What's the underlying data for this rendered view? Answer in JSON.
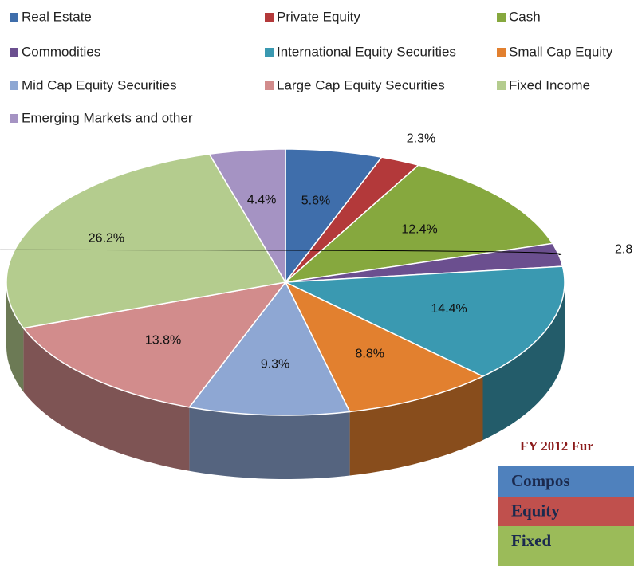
{
  "chart_data": {
    "type": "pie",
    "categories": [
      "Real Estate",
      "Private Equity",
      "Cash",
      "Commodities",
      "International Equity Securities",
      "Small Cap Equity",
      "Mid Cap Equity Securities",
      "Large Cap Equity Securities",
      "Fixed Income",
      "Emerging Markets and other"
    ],
    "values": [
      5.6,
      2.3,
      12.4,
      2.8,
      14.4,
      8.8,
      9.3,
      13.8,
      26.2,
      4.4
    ],
    "value_labels": [
      "5.6%",
      "2.3%",
      "12.4%",
      "2.8",
      "14.4%",
      "8.8%",
      "9.3%",
      "13.8%",
      "26.2%",
      "4.4%"
    ],
    "colors": [
      "#3f6eab",
      "#b3393a",
      "#86a83e",
      "#6b4f8f",
      "#3a99b1",
      "#e2802f",
      "#8ea7d3",
      "#d28c8c",
      "#b4cc8e",
      "#a593c3"
    ],
    "legend": "top"
  },
  "table": {
    "title": "FY 2012 Fur",
    "rows": [
      "Compos",
      "Equity",
      "Fixed"
    ],
    "colors": [
      "#4f81bd",
      "#c0504d",
      "#9bbb59"
    ]
  }
}
